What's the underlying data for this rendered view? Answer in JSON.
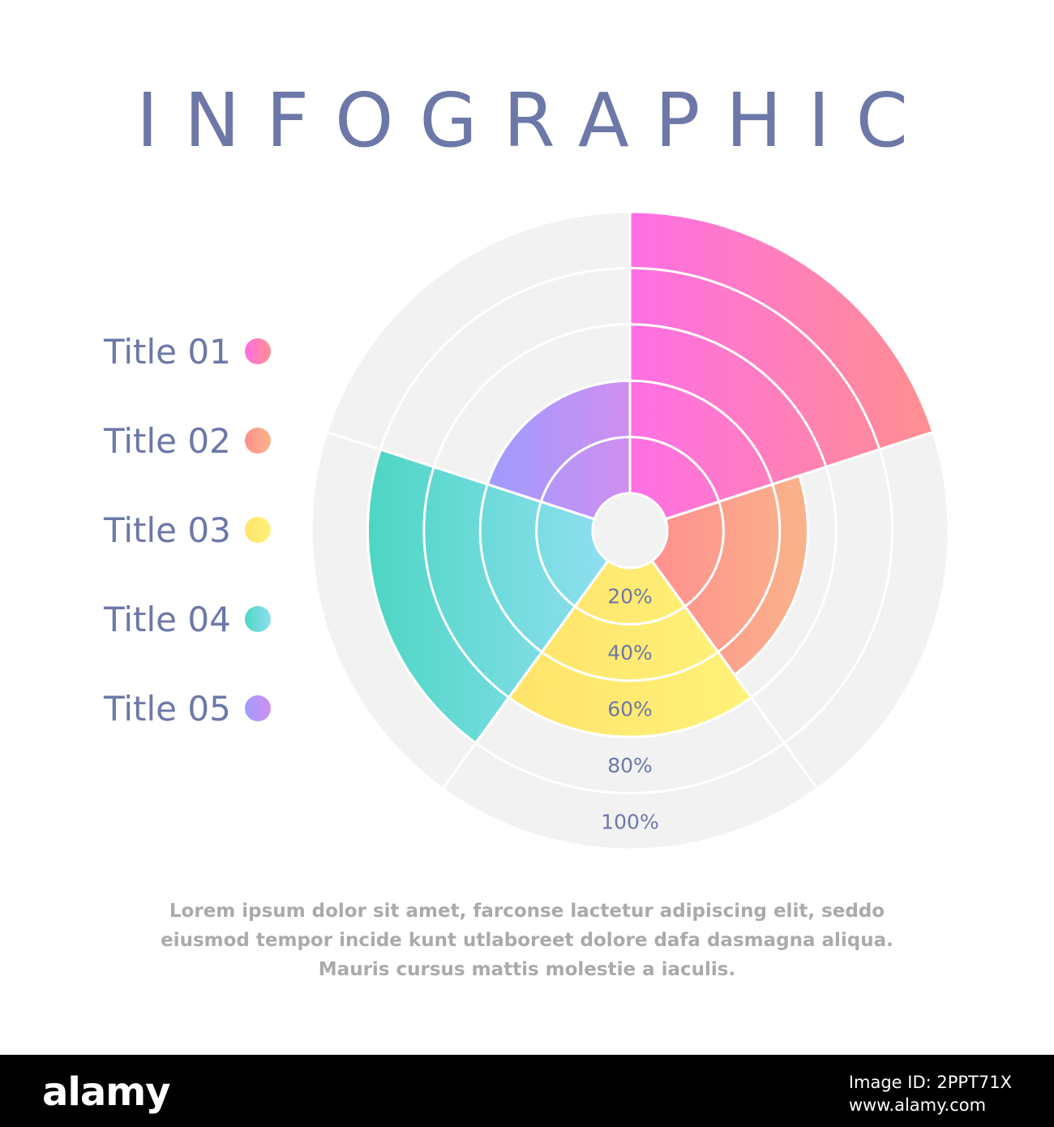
{
  "title": "INFOGRAPHIC",
  "legend": [
    {
      "label": "Title 01",
      "color_from": "#ff6fe6",
      "color_to": "#ff8f8f"
    },
    {
      "label": "Title 02",
      "color_from": "#ff8f8f",
      "color_to": "#f9b48a"
    },
    {
      "label": "Title 03",
      "color_from": "#ffe36a",
      "color_to": "#fff27a"
    },
    {
      "label": "Title 04",
      "color_from": "#4dd6c3",
      "color_to": "#8fdff0"
    },
    {
      "label": "Title 05",
      "color_from": "#9f9bff",
      "color_to": "#d08ff0"
    }
  ],
  "chart_data": {
    "type": "polar-area",
    "categories": [
      "Title 01",
      "Title 02",
      "Title 03",
      "Title 04",
      "Title 05"
    ],
    "values": [
      100,
      50,
      60,
      80,
      40
    ],
    "unit": "%",
    "radial_ticks": [
      "20%",
      "40%",
      "60%",
      "80%",
      "100%"
    ],
    "background": "#f2f2f2"
  },
  "caption": [
    "Lorem ipsum dolor sit amet, farconse lactetur adipiscing elit, seddo",
    "eiusmod tempor incide kunt utlaboreet dolore dafa dasmagna aliqua.",
    "Mauris cursus mattis molestie a iaculis."
  ],
  "footer": {
    "logo": "alamy",
    "image_id": "Image ID: 2PPT71X",
    "site": "www.alamy.com"
  }
}
